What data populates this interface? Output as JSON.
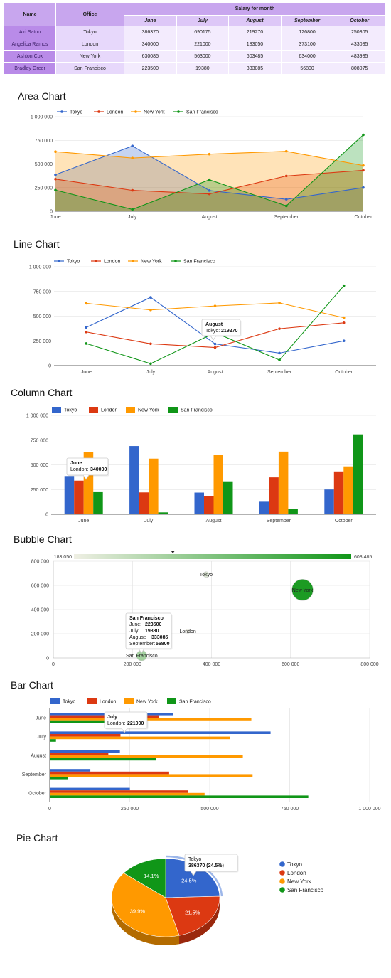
{
  "table": {
    "header_name": "Name",
    "header_office": "Office",
    "header_salary": "Salary for month",
    "months": [
      "June",
      "July",
      "August",
      "September",
      "October"
    ],
    "rows": [
      {
        "name": "Airi Satou",
        "office": "Tokyo",
        "values": [
          "386370",
          "690175",
          "219270",
          "126800",
          "250305"
        ]
      },
      {
        "name": "Angelica Ramos",
        "office": "London",
        "values": [
          "340000",
          "221000",
          "183050",
          "373100",
          "433085"
        ]
      },
      {
        "name": "Ashton Cox",
        "office": "New York",
        "values": [
          "630085",
          "563000",
          "603485",
          "634000",
          "483985"
        ]
      },
      {
        "name": "Bradley Greer",
        "office": "San Francisco",
        "values": [
          "223500",
          "19380",
          "333085",
          "56800",
          "808075"
        ]
      }
    ]
  },
  "colors": {
    "Tokyo": "#3366cc",
    "London": "#dc3912",
    "New York": "#ff9900",
    "San Francisco": "#109618"
  },
  "chart_data": [
    {
      "id": "area",
      "type": "area",
      "title": "Area Chart",
      "categories": [
        "June",
        "July",
        "August",
        "September",
        "October"
      ],
      "series": [
        {
          "name": "Tokyo",
          "values": [
            386370,
            690175,
            219270,
            126800,
            250305
          ]
        },
        {
          "name": "London",
          "values": [
            340000,
            221000,
            183050,
            373100,
            433085
          ]
        },
        {
          "name": "New York",
          "values": [
            630085,
            563000,
            603485,
            634000,
            483985
          ]
        },
        {
          "name": "San Francisco",
          "values": [
            223500,
            19380,
            333085,
            56800,
            808075
          ]
        }
      ],
      "ylim": [
        0,
        1000000
      ],
      "yticks": [
        "0",
        "250 000",
        "500 000",
        "750 000",
        "1 000 000"
      ],
      "legend": "top"
    },
    {
      "id": "line",
      "type": "line",
      "title": "Line Chart",
      "categories": [
        "June",
        "July",
        "August",
        "September",
        "October"
      ],
      "series": [
        {
          "name": "Tokyo",
          "values": [
            386370,
            690175,
            219270,
            126800,
            250305
          ]
        },
        {
          "name": "London",
          "values": [
            340000,
            221000,
            183050,
            373100,
            433085
          ]
        },
        {
          "name": "New York",
          "values": [
            630085,
            563000,
            603485,
            634000,
            483985
          ]
        },
        {
          "name": "San Francisco",
          "values": [
            223500,
            19380,
            333085,
            56800,
            808075
          ]
        }
      ],
      "ylim": [
        0,
        1000000
      ],
      "yticks": [
        "0",
        "250 000",
        "500 000",
        "750 000",
        "1 000 000"
      ],
      "legend": "top",
      "tooltip": {
        "title": "August",
        "label": "Tokyo:",
        "value": "219270"
      }
    },
    {
      "id": "column",
      "type": "bar",
      "orientation": "vertical",
      "title": "Column Chart",
      "categories": [
        "June",
        "July",
        "August",
        "September",
        "October"
      ],
      "series": [
        {
          "name": "Tokyo",
          "values": [
            386370,
            690175,
            219270,
            126800,
            250305
          ]
        },
        {
          "name": "London",
          "values": [
            340000,
            221000,
            183050,
            373100,
            433085
          ]
        },
        {
          "name": "New York",
          "values": [
            630085,
            563000,
            603485,
            634000,
            483985
          ]
        },
        {
          "name": "San Francisco",
          "values": [
            223500,
            19380,
            333085,
            56800,
            808075
          ]
        }
      ],
      "ylim": [
        0,
        1000000
      ],
      "yticks": [
        "0",
        "250 000",
        "500 000",
        "750 000",
        "1 000 000"
      ],
      "legend": "top",
      "tooltip": {
        "title": "June",
        "label": "London:",
        "value": "340000"
      }
    },
    {
      "id": "bubble",
      "type": "scatter",
      "title": "Bubble Chart",
      "points": [
        {
          "name": "Tokyo",
          "x": 386370,
          "y": 690175,
          "color_value": 219270
        },
        {
          "name": "London",
          "x": 340000,
          "y": 221000,
          "color_value": 183050
        },
        {
          "name": "New York",
          "x": 630085,
          "y": 563000,
          "color_value": 603485
        },
        {
          "name": "San Francisco",
          "x": 223500,
          "y": 19380,
          "color_value": 333085
        }
      ],
      "xlim": [
        0,
        800000
      ],
      "ylim": [
        0,
        800000
      ],
      "xticks": [
        "0",
        "200 000",
        "400 000",
        "600 000",
        "800 000"
      ],
      "yticks": [
        "0",
        "200 000",
        "400 000",
        "600 000",
        "800 000"
      ],
      "colorscale": {
        "min_label": "183 050",
        "max_label": "603 485",
        "min": 183050,
        "max": 603485,
        "marker": 333085
      },
      "tooltip": {
        "title": "San Francisco",
        "lines": [
          {
            "label": "June:",
            "value": "223500"
          },
          {
            "label": "July:",
            "value": "19380"
          },
          {
            "label": "August:",
            "value": "333085"
          },
          {
            "label": "September:",
            "value": "56800"
          }
        ]
      }
    },
    {
      "id": "bar",
      "type": "bar",
      "orientation": "horizontal",
      "title": "Bar Chart",
      "categories": [
        "June",
        "July",
        "August",
        "September",
        "October"
      ],
      "series": [
        {
          "name": "Tokyo",
          "values": [
            386370,
            690175,
            219270,
            126800,
            250305
          ]
        },
        {
          "name": "London",
          "values": [
            340000,
            221000,
            183050,
            373100,
            433085
          ]
        },
        {
          "name": "New York",
          "values": [
            630085,
            563000,
            603485,
            634000,
            483985
          ]
        },
        {
          "name": "San Francisco",
          "values": [
            223500,
            19380,
            333085,
            56800,
            808075
          ]
        }
      ],
      "xlim": [
        0,
        1000000
      ],
      "xticks": [
        "0",
        "250 000",
        "500 000",
        "750 000",
        "1 000 000"
      ],
      "legend": "top",
      "tooltip": {
        "title": "July",
        "label": "London:",
        "value": "221000"
      }
    },
    {
      "id": "pie",
      "type": "pie",
      "title": "Pie Chart",
      "slices": [
        {
          "name": "Tokyo",
          "value": 386370,
          "label": "24.5%"
        },
        {
          "name": "London",
          "value": 340000,
          "label": "21.5%"
        },
        {
          "name": "New York",
          "value": 630085,
          "label": "39.9%"
        },
        {
          "name": "San Francisco",
          "value": 223500,
          "label": "14.1%"
        }
      ],
      "legend": "right",
      "tooltip": {
        "title": "Tokyo",
        "value": "386370 (24.5%)"
      }
    }
  ]
}
